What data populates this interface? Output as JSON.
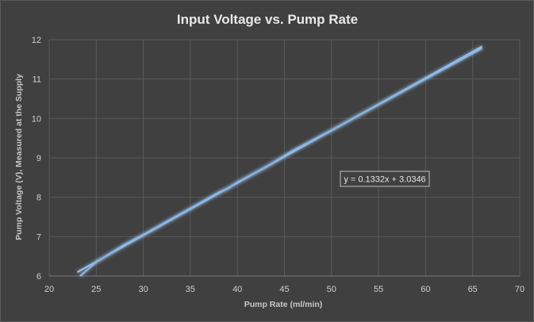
{
  "chart_data": {
    "type": "line",
    "title": "Input Voltage vs. Pump Rate",
    "xlabel": "Pump Rate (ml/min)",
    "ylabel": "Pump Voltage (V), Measured at the Supply",
    "xlim": [
      20,
      70
    ],
    "ylim": [
      6,
      12
    ],
    "xticks": [
      20,
      25,
      30,
      35,
      40,
      45,
      50,
      55,
      60,
      65,
      70
    ],
    "yticks": [
      6,
      7,
      8,
      9,
      10,
      11,
      12
    ],
    "grid": true,
    "series": [
      {
        "color": "#8ab4e0",
        "x": [
          23.3,
          25,
          28,
          30,
          33,
          36,
          38,
          39,
          40,
          43,
          46,
          50,
          55,
          60,
          66
        ],
        "y": [
          6.0,
          6.35,
          6.8,
          7.05,
          7.45,
          7.85,
          8.12,
          8.22,
          8.38,
          8.76,
          9.2,
          9.7,
          10.35,
          11.0,
          11.78
        ]
      }
    ],
    "trendline": {
      "slope": 0.1332,
      "intercept": 3.0346,
      "x_range": [
        23,
        66
      ],
      "color": "#9fc5f0",
      "label": "y = 0.1332x + 3.0346"
    }
  }
}
